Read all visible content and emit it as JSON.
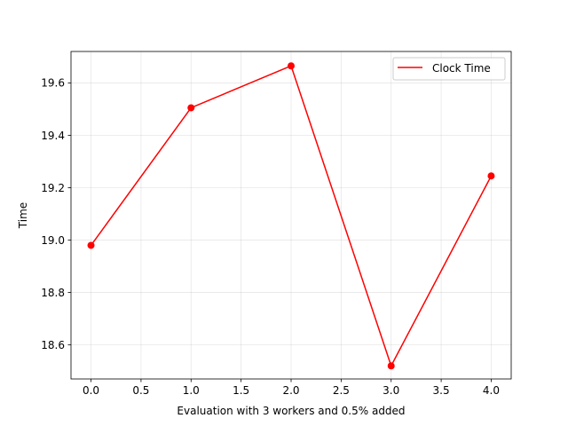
{
  "chart_data": {
    "type": "line",
    "title": "",
    "xlabel": "Evaluation with 3 workers and 0.5% added",
    "ylabel": "Time",
    "xlim": [
      -0.2,
      4.2
    ],
    "ylim": [
      18.47,
      19.72
    ],
    "x_ticks": [
      0.0,
      0.5,
      1.0,
      1.5,
      2.0,
      2.5,
      3.0,
      3.5,
      4.0
    ],
    "x_tick_labels": [
      "0.0",
      "0.5",
      "1.0",
      "1.5",
      "2.0",
      "2.5",
      "3.0",
      "3.5",
      "4.0"
    ],
    "y_ticks": [
      18.6,
      18.8,
      19.0,
      19.2,
      19.4,
      19.6
    ],
    "y_tick_labels": [
      "18.6",
      "18.8",
      "19.0",
      "19.2",
      "19.4",
      "19.6"
    ],
    "grid": true,
    "legend_position": "top-right",
    "series": [
      {
        "name": "Clock Time",
        "color": "#ff0000",
        "marker": "circle",
        "x": [
          0,
          1,
          2,
          3,
          4
        ],
        "y": [
          18.98,
          19.505,
          19.665,
          18.52,
          19.245
        ]
      }
    ]
  }
}
